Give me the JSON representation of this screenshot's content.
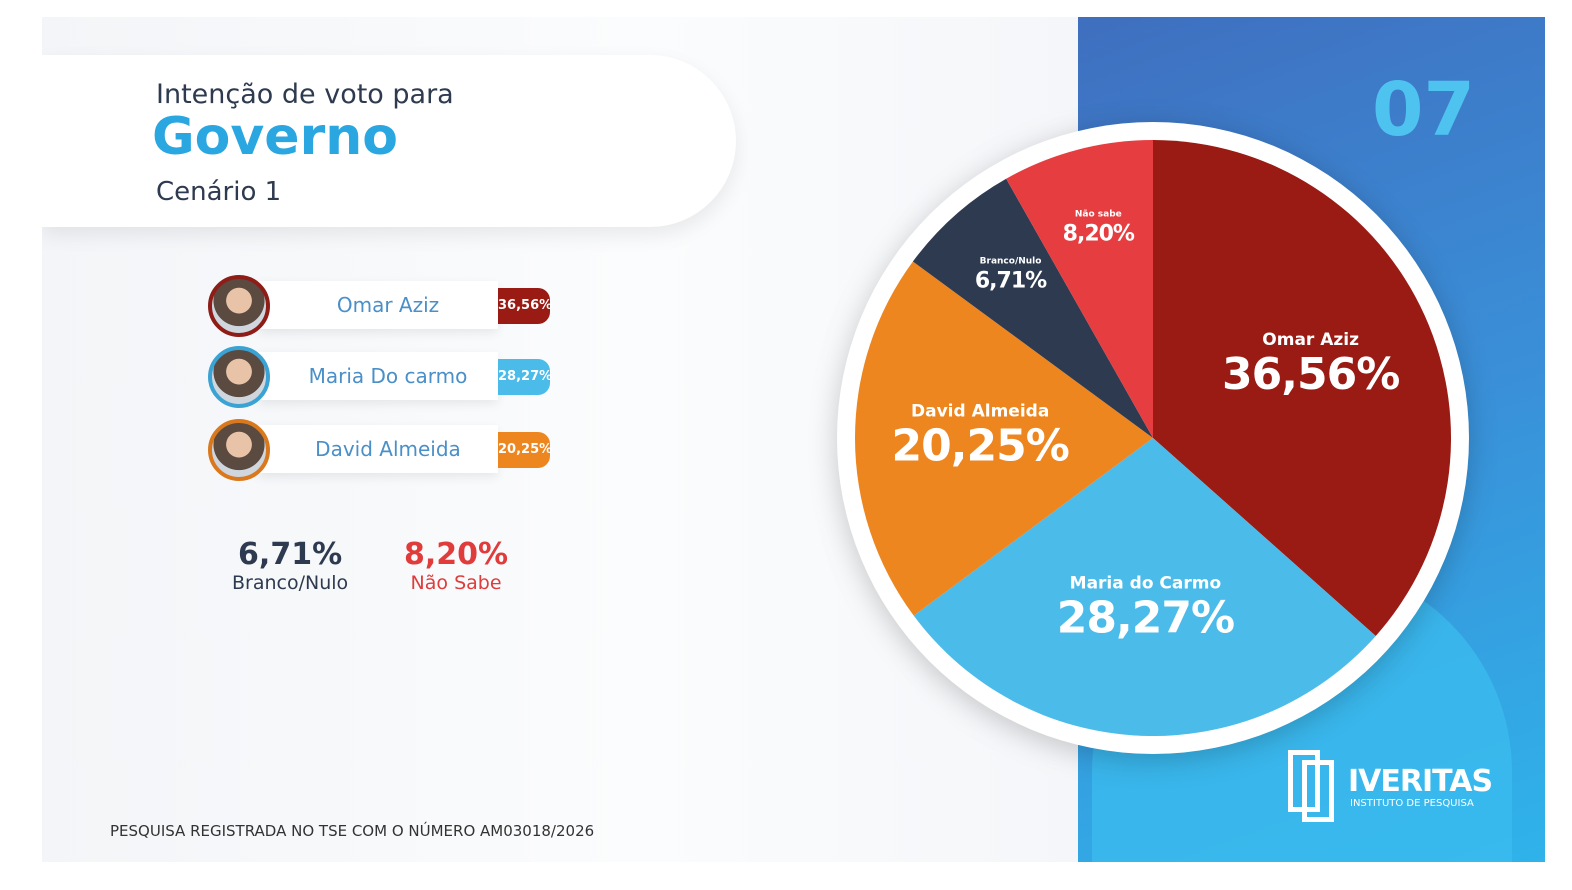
{
  "header": {
    "subtitle": "Intenção de voto para",
    "title": "Governo",
    "scenario": "Cenário 1",
    "page_number": "07"
  },
  "candidates": [
    {
      "name": "Omar Aziz",
      "value": "36,56%",
      "color": "#9a1a14"
    },
    {
      "name": "Maria Do carmo",
      "value": "28,27%",
      "color": "#4bbbea"
    },
    {
      "name": "David Almeida",
      "value": "20,25%",
      "color": "#ee8620"
    }
  ],
  "others": [
    {
      "label": "Branco/Nulo",
      "value": "6,71%",
      "color": "#2e3a50"
    },
    {
      "label": "Não Sabe",
      "value": "8,20%",
      "color": "#e03c3c"
    }
  ],
  "footer": "PESQUISA REGISTRADA NO TSE COM O NÚMERO AM03018/2026",
  "logo": {
    "name": "IVERITAS",
    "tagline": "INSTITUTO DE PESQUISA"
  },
  "chart_data": {
    "type": "pie",
    "title": "Intenção de voto para Governo - Cenário 1",
    "start": "top, clockwise",
    "slices": [
      {
        "label": "Omar Aziz",
        "value": 36.56,
        "display": "36,56%",
        "color": "#9a1a14"
      },
      {
        "label": "Maria do Carmo",
        "value": 28.27,
        "display": "28,27%",
        "color": "#4bbbea"
      },
      {
        "label": "David Almeida",
        "value": 20.25,
        "display": "20,25%",
        "color": "#ee8620"
      },
      {
        "label": "Branco/Nulo",
        "value": 6.71,
        "display": "6,71%",
        "color": "#2e3a50"
      },
      {
        "label": "Não sabe",
        "value": 8.2,
        "display": "8,20%",
        "color": "#e63e40"
      }
    ]
  }
}
